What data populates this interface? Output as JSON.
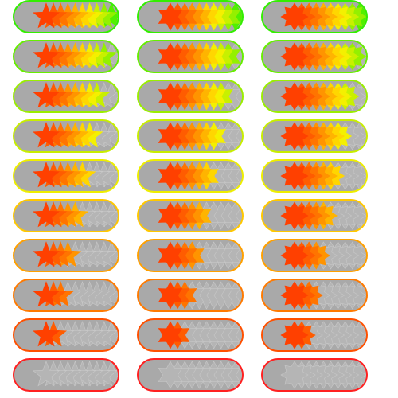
{
  "rating_grid": {
    "star_count": 10,
    "star_styles": [
      "five-point",
      "six-point",
      "eight-point"
    ],
    "colors": {
      "track": "#a9a9a9",
      "empty_star": "#b5b5b5",
      "empty_star_edge": "#c8c8c8",
      "scale": [
        "#ff4000",
        "#ff5c00",
        "#ff7400",
        "#ff9400",
        "#ffb400",
        "#ffd600",
        "#f4f000",
        "#c8f000",
        "#94f000",
        "#52f000"
      ],
      "border_scale": [
        "#ff2020",
        "#ff2020",
        "#ff5000",
        "#ff7a00",
        "#ffa000",
        "#ffc800",
        "#eeee00",
        "#c8ee00",
        "#9aee00",
        "#66ee00",
        "#33ee00"
      ]
    },
    "rows": [
      {
        "value": 10,
        "ratings": [
          10,
          10,
          10
        ]
      },
      {
        "value": 9,
        "ratings": [
          9,
          9,
          9
        ]
      },
      {
        "value": 8,
        "ratings": [
          8,
          8,
          8
        ]
      },
      {
        "value": 7,
        "ratings": [
          7,
          7,
          7
        ]
      },
      {
        "value": 6,
        "ratings": [
          6,
          6,
          6
        ]
      },
      {
        "value": 5,
        "ratings": [
          5,
          5,
          5
        ]
      },
      {
        "value": 4,
        "ratings": [
          4,
          4,
          4
        ]
      },
      {
        "value": 3,
        "ratings": [
          3,
          3,
          3
        ]
      },
      {
        "value": 2,
        "ratings": [
          2,
          2,
          2
        ]
      },
      {
        "value": 0,
        "ratings": [
          0,
          0,
          0
        ]
      }
    ]
  }
}
